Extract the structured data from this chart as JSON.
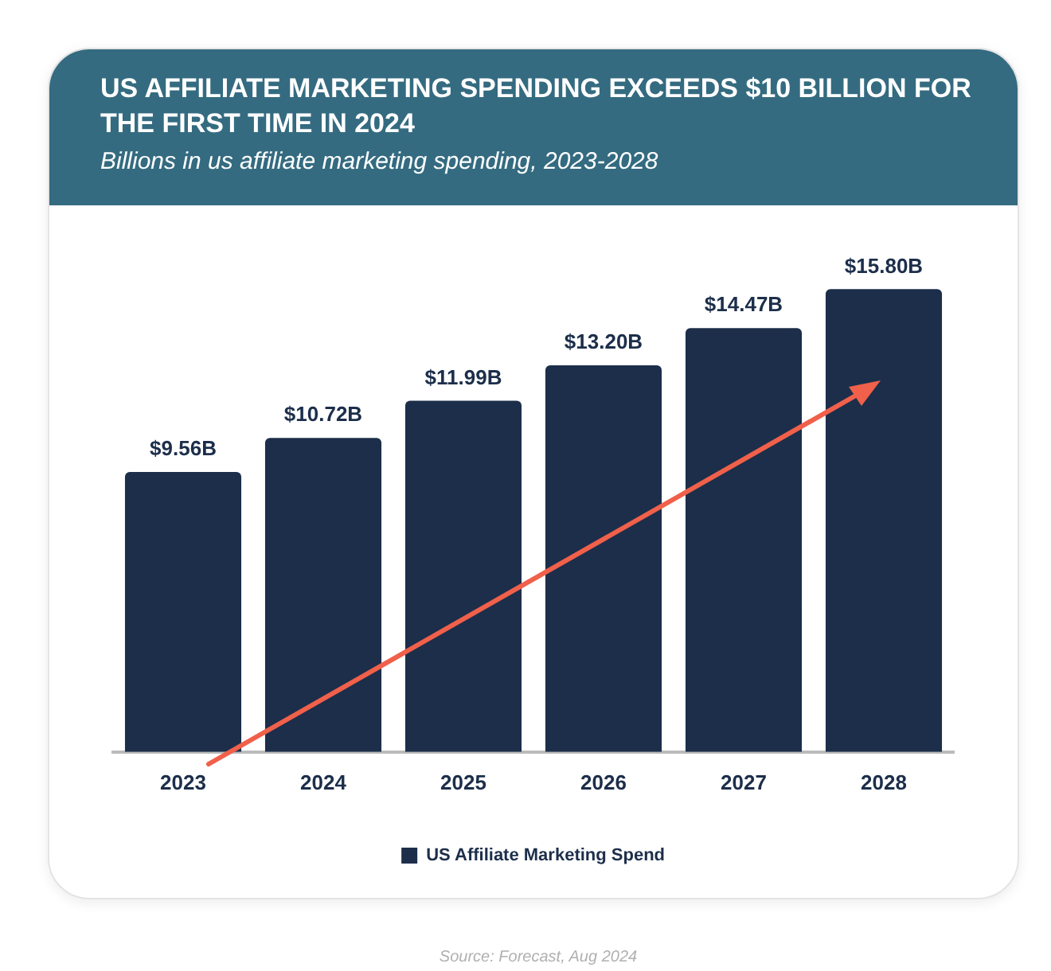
{
  "chart_data": {
    "type": "bar",
    "title": "US AFFILIATE MARKETING SPENDING EXCEEDS $10 BILLION FOR THE FIRST TIME IN 2024",
    "subtitle": "Billions in us affiliate marketing spending, 2023-2028",
    "categories": [
      "2023",
      "2024",
      "2025",
      "2026",
      "2027",
      "2028"
    ],
    "series": [
      {
        "name": "US Affiliate Marketing Spend",
        "color": "#1c2e4a",
        "values": [
          9.56,
          10.72,
          11.99,
          13.2,
          14.47,
          15.8
        ],
        "value_labels": [
          "$9.56B",
          "$10.72B",
          "$11.99B",
          "$13.20B",
          "$14.47B",
          "$15.80B"
        ]
      }
    ],
    "legend": "bottom",
    "grid": false,
    "tick_labels": "x",
    "annotations": [
      "Source: Forecast, Aug 2024"
    ]
  }
}
